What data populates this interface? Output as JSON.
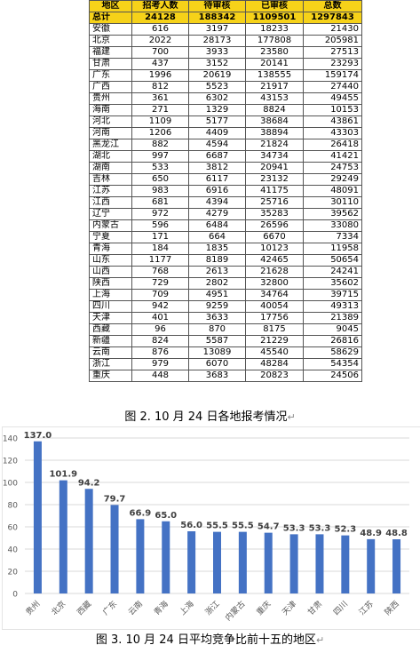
{
  "table": {
    "headers": [
      "地区",
      "招考人数",
      "待审核",
      "已审核",
      "总数"
    ],
    "total": [
      "总计",
      "24128",
      "188342",
      "1109501",
      "1297843"
    ],
    "rows": [
      [
        "安徽",
        "616",
        "3197",
        "18233",
        "21430"
      ],
      [
        "北京",
        "2022",
        "28173",
        "177808",
        "205981"
      ],
      [
        "福建",
        "700",
        "3933",
        "23580",
        "27513"
      ],
      [
        "甘肃",
        "437",
        "3152",
        "20141",
        "23293"
      ],
      [
        "广东",
        "1996",
        "20619",
        "138555",
        "159174"
      ],
      [
        "广西",
        "812",
        "5523",
        "21917",
        "27440"
      ],
      [
        "贵州",
        "361",
        "6302",
        "43153",
        "49455"
      ],
      [
        "海南",
        "271",
        "1329",
        "8824",
        "10153"
      ],
      [
        "河北",
        "1109",
        "5177",
        "38684",
        "43861"
      ],
      [
        "河南",
        "1206",
        "4409",
        "38894",
        "43303"
      ],
      [
        "黑龙江",
        "882",
        "4594",
        "21824",
        "26418"
      ],
      [
        "湖北",
        "997",
        "6687",
        "34734",
        "41421"
      ],
      [
        "湖南",
        "533",
        "3812",
        "20941",
        "24753"
      ],
      [
        "吉林",
        "650",
        "6117",
        "23132",
        "29249"
      ],
      [
        "江苏",
        "983",
        "6916",
        "41175",
        "48091"
      ],
      [
        "江西",
        "681",
        "4394",
        "25716",
        "30110"
      ],
      [
        "辽宁",
        "972",
        "4279",
        "35283",
        "39562"
      ],
      [
        "内蒙古",
        "596",
        "6484",
        "26596",
        "33080"
      ],
      [
        "宁夏",
        "171",
        "664",
        "6670",
        "7334"
      ],
      [
        "青海",
        "184",
        "1835",
        "10123",
        "11958"
      ],
      [
        "山东",
        "1177",
        "8189",
        "42465",
        "50654"
      ],
      [
        "山西",
        "768",
        "2613",
        "21628",
        "24241"
      ],
      [
        "陕西",
        "729",
        "2802",
        "32800",
        "35602"
      ],
      [
        "上海",
        "709",
        "4951",
        "34764",
        "39715"
      ],
      [
        "四川",
        "942",
        "9259",
        "40054",
        "49313"
      ],
      [
        "天津",
        "401",
        "3633",
        "17756",
        "21389"
      ],
      [
        "西藏",
        "96",
        "870",
        "8175",
        "9045"
      ],
      [
        "新疆",
        "824",
        "5587",
        "21229",
        "26816"
      ],
      [
        "云南",
        "876",
        "13089",
        "45540",
        "58629"
      ],
      [
        "浙江",
        "979",
        "6070",
        "48284",
        "54354"
      ],
      [
        "重庆",
        "448",
        "3683",
        "20823",
        "24506"
      ]
    ]
  },
  "caption_table": "图 2. 10 月 24 日各地报考情况",
  "caption_chart": "图 3. 10 月 24 日平均竞争比前十五的地区",
  "paragraph_mark": "↵",
  "chart_data": {
    "type": "bar",
    "title": "",
    "xlabel": "",
    "ylabel": "",
    "categories": [
      "贵州",
      "北京",
      "西藏",
      "广东",
      "云南",
      "青海",
      "上海",
      "浙江",
      "内蒙古",
      "重庆",
      "天津",
      "甘肃",
      "四川",
      "江苏",
      "陕西"
    ],
    "values": [
      137.0,
      101.9,
      94.2,
      79.7,
      66.9,
      65.0,
      56.0,
      55.5,
      55.5,
      54.7,
      53.3,
      53.3,
      52.3,
      48.9,
      48.8
    ],
    "value_labels": [
      "137.0",
      "101.9",
      "94.2",
      "79.7",
      "66.9",
      "65.0",
      "56.0",
      "55.5",
      "55.5",
      "54.7",
      "53.3",
      "53.3",
      "52.3",
      "48.9",
      "48.8"
    ],
    "yticks": [
      0,
      20,
      40,
      60,
      80,
      100,
      120,
      140
    ],
    "ylim": [
      0,
      140
    ],
    "grid": true,
    "bar_color": "#4472c4"
  }
}
